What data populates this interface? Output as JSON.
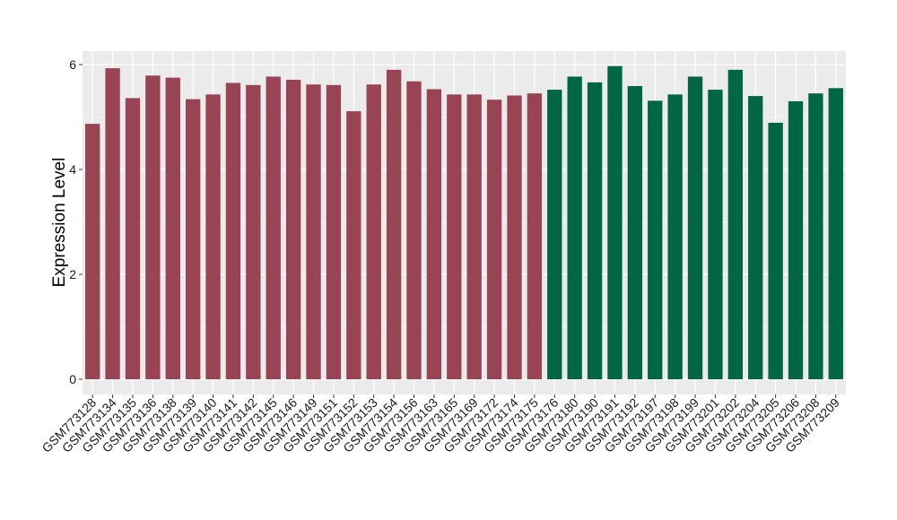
{
  "chart_data": {
    "type": "bar",
    "ylabel": "Expression Level",
    "xlabel": "",
    "ylim": [
      0,
      6.2
    ],
    "yticks": [
      0,
      2,
      4,
      6
    ],
    "grid": true,
    "legend": "none",
    "colors": {
      "group1": "#994455",
      "group2": "#006644",
      "panel": "#ebebeb",
      "grid": "#ffffff"
    },
    "categories": [
      "GSM773128",
      "GSM773134",
      "GSM773135",
      "GSM773136",
      "GSM773138",
      "GSM773139",
      "GSM773140",
      "GSM773141",
      "GSM773142",
      "GSM773145",
      "GSM773146",
      "GSM773149",
      "GSM773151",
      "GSM773152",
      "GSM773153",
      "GSM773154",
      "GSM773156",
      "GSM773163",
      "GSM773165",
      "GSM773169",
      "GSM773172",
      "GSM773174",
      "GSM773175",
      "GSM773176",
      "GSM773180",
      "GSM773190",
      "GSM773191",
      "GSM773192",
      "GSM773197",
      "GSM773198",
      "GSM773199",
      "GSM773201",
      "GSM773202",
      "GSM773204",
      "GSM773205",
      "GSM773206",
      "GSM773208",
      "GSM773209"
    ],
    "values": [
      4.87,
      5.93,
      5.36,
      5.79,
      5.75,
      5.34,
      5.43,
      5.65,
      5.61,
      5.77,
      5.71,
      5.62,
      5.61,
      5.11,
      5.62,
      5.9,
      5.68,
      5.53,
      5.43,
      5.43,
      5.33,
      5.41,
      5.45,
      5.52,
      5.77,
      5.66,
      5.97,
      5.59,
      5.31,
      5.43,
      5.77,
      5.52,
      5.9,
      5.4,
      4.89,
      5.3,
      5.45,
      5.55
    ],
    "groups": [
      1,
      1,
      1,
      1,
      1,
      1,
      1,
      1,
      1,
      1,
      1,
      1,
      1,
      1,
      1,
      1,
      1,
      1,
      1,
      1,
      1,
      1,
      1,
      2,
      2,
      2,
      2,
      2,
      2,
      2,
      2,
      2,
      2,
      2,
      2,
      2,
      2,
      2
    ]
  }
}
